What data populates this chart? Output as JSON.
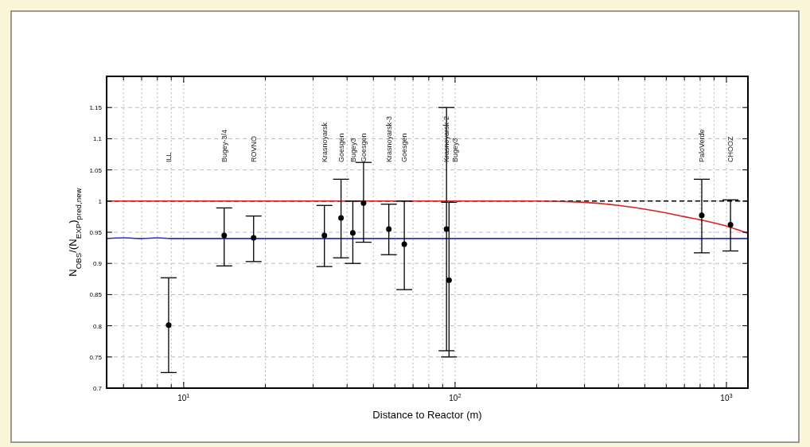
{
  "chart_data": {
    "type": "scatter",
    "xlabel": "Distance to Reactor (m)",
    "ylabel": "N$_{OBS}$/(N$_{EXP}$)$_{pred,new}$",
    "log": "x",
    "grid": true,
    "marker": "circle",
    "xlim": [
      5.2,
      1200
    ],
    "ylim": [
      0.7,
      1.2
    ],
    "xticks": [
      {
        "value": 6,
        "label": null
      },
      {
        "value": 7,
        "label": null
      },
      {
        "value": 8,
        "label": null
      },
      {
        "value": 9,
        "label": null
      },
      {
        "value": 10,
        "label": "10$^{1}$"
      },
      {
        "value": 20,
        "label": null
      },
      {
        "value": 30,
        "label": null
      },
      {
        "value": 40,
        "label": null
      },
      {
        "value": 50,
        "label": null
      },
      {
        "value": 60,
        "label": null
      },
      {
        "value": 70,
        "label": null
      },
      {
        "value": 80,
        "label": null
      },
      {
        "value": 90,
        "label": null
      },
      {
        "value": 100,
        "label": "10$^{2}$"
      },
      {
        "value": 200,
        "label": null
      },
      {
        "value": 300,
        "label": null
      },
      {
        "value": 400,
        "label": null
      },
      {
        "value": 500,
        "label": null
      },
      {
        "value": 600,
        "label": null
      },
      {
        "value": 700,
        "label": null
      },
      {
        "value": 800,
        "label": null
      },
      {
        "value": 900,
        "label": null
      },
      {
        "value": 1000,
        "label": "10$^{3}$"
      }
    ],
    "yticks": [
      0.7,
      0.75,
      0.8,
      0.85,
      0.9,
      0.95,
      1,
      1.05,
      1.1,
      1.15
    ],
    "series": [
      {
        "type": "line",
        "color": "#e02020",
        "marker": "none",
        "x": [
          5.2,
          100,
          200,
          300,
          400,
          500,
          600,
          700,
          800,
          900,
          1000,
          1100,
          1200
        ],
        "values": [
          1,
          1,
          1,
          0.998,
          0.993,
          0.987,
          0.981,
          0.975,
          0.97,
          0.965,
          0.96,
          0.954,
          0.948
        ]
      },
      {
        "type": "line",
        "color": "#2030e0",
        "marker": "none",
        "x": [
          5.2,
          6,
          7,
          8,
          9,
          10,
          20,
          50,
          100,
          500,
          1200
        ],
        "values": [
          0.94,
          0.941,
          0.94,
          0.941,
          0.94,
          0.94,
          0.94,
          0.94,
          0.94,
          0.94,
          0.94
        ]
      },
      {
        "color": "#000000",
        "x": [
          8.8,
          14.1,
          18.1,
          33,
          38,
          42,
          46,
          57,
          65,
          93,
          95,
          811,
          1035
        ],
        "values": [
          0.801,
          0.945,
          0.941,
          0.945,
          0.973,
          0.949,
          0.997,
          0.955,
          0.931,
          0.955,
          0.873,
          0.977,
          0.962
        ],
        "errors": [
          [
            0.725,
            0.877
          ],
          [
            0.896,
            0.989
          ],
          [
            0.903,
            0.976
          ],
          [
            0.895,
            0.993
          ],
          [
            0.909,
            1.035
          ],
          [
            0.9,
            1.0
          ],
          [
            0.934,
            1.062
          ],
          [
            0.914,
            0.995
          ],
          [
            0.858,
            1.0
          ],
          [
            0.76,
            1.15
          ],
          [
            0.75,
            0.998
          ],
          [
            0.917,
            1.035
          ],
          [
            0.92,
            1.002
          ]
        ]
      }
    ],
    "ref_lines": [
      {
        "axis": "y",
        "value": 1,
        "color": "#000000",
        "line_style": "dashed"
      }
    ],
    "annotations": [
      "ILL",
      "Bugey-3/4",
      "ROVNO",
      "Krasnoyarsk",
      "Goesgen",
      "Bugey3",
      "Goesgen",
      "Krasnoyarsk-3",
      "Goesgen",
      "Krasnoyarsk-2",
      "Bugey3",
      "PaloVerde",
      "CHOOZ"
    ]
  }
}
